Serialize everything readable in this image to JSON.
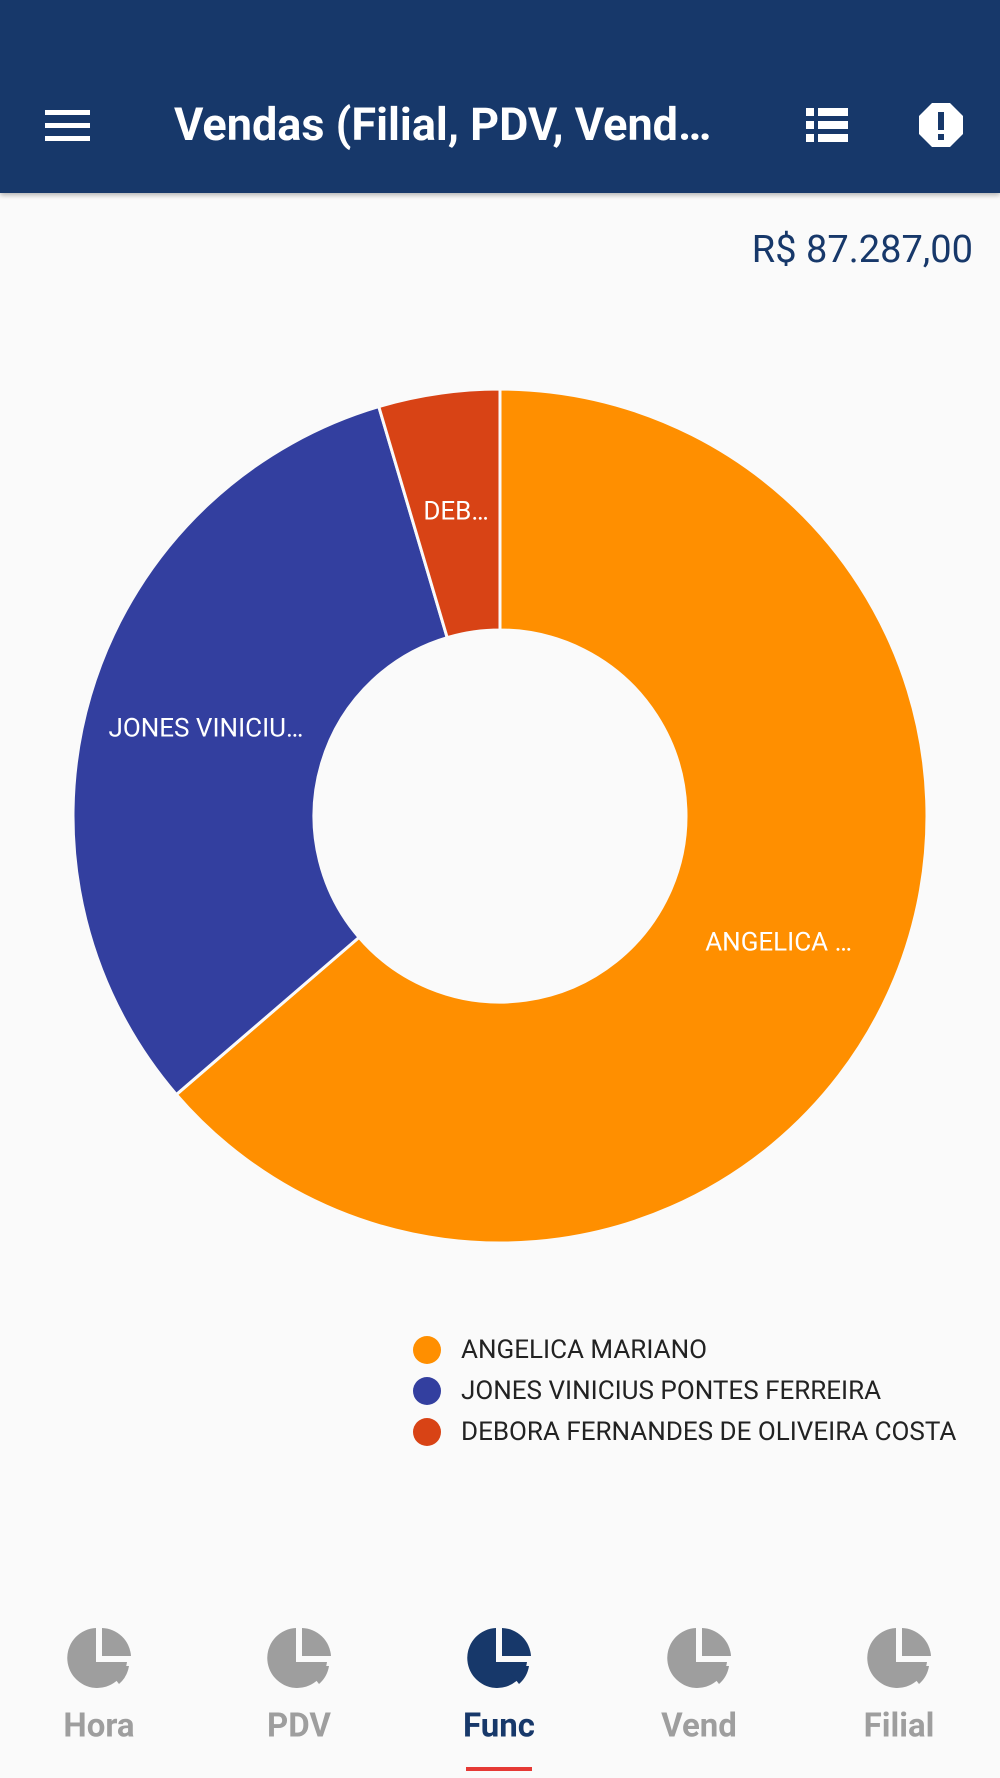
{
  "header": {
    "title": "Vendas (Filial, PDV, Vendedor)"
  },
  "total": "R$ 87.287,00",
  "chart_data": {
    "type": "donut",
    "categories": [
      "ANGELICA MARIANO",
      "JONES VINICIUS PONTES FERREIRA",
      "DEBORA FERNANDES DE OLIVEIRA COSTA"
    ],
    "slice_labels": [
      "ANGELICA …",
      "JONES VINICIU…",
      "DEB…"
    ],
    "values": [
      55600,
      27700,
      4000
    ],
    "colors": [
      "#ff8f00",
      "#333f9f",
      "#d84315"
    ]
  },
  "nav": {
    "items": [
      {
        "label": "Hora",
        "active": false
      },
      {
        "label": "PDV",
        "active": false
      },
      {
        "label": "Func",
        "active": true
      },
      {
        "label": "Vend",
        "active": false
      },
      {
        "label": "Filial",
        "active": false
      }
    ]
  }
}
